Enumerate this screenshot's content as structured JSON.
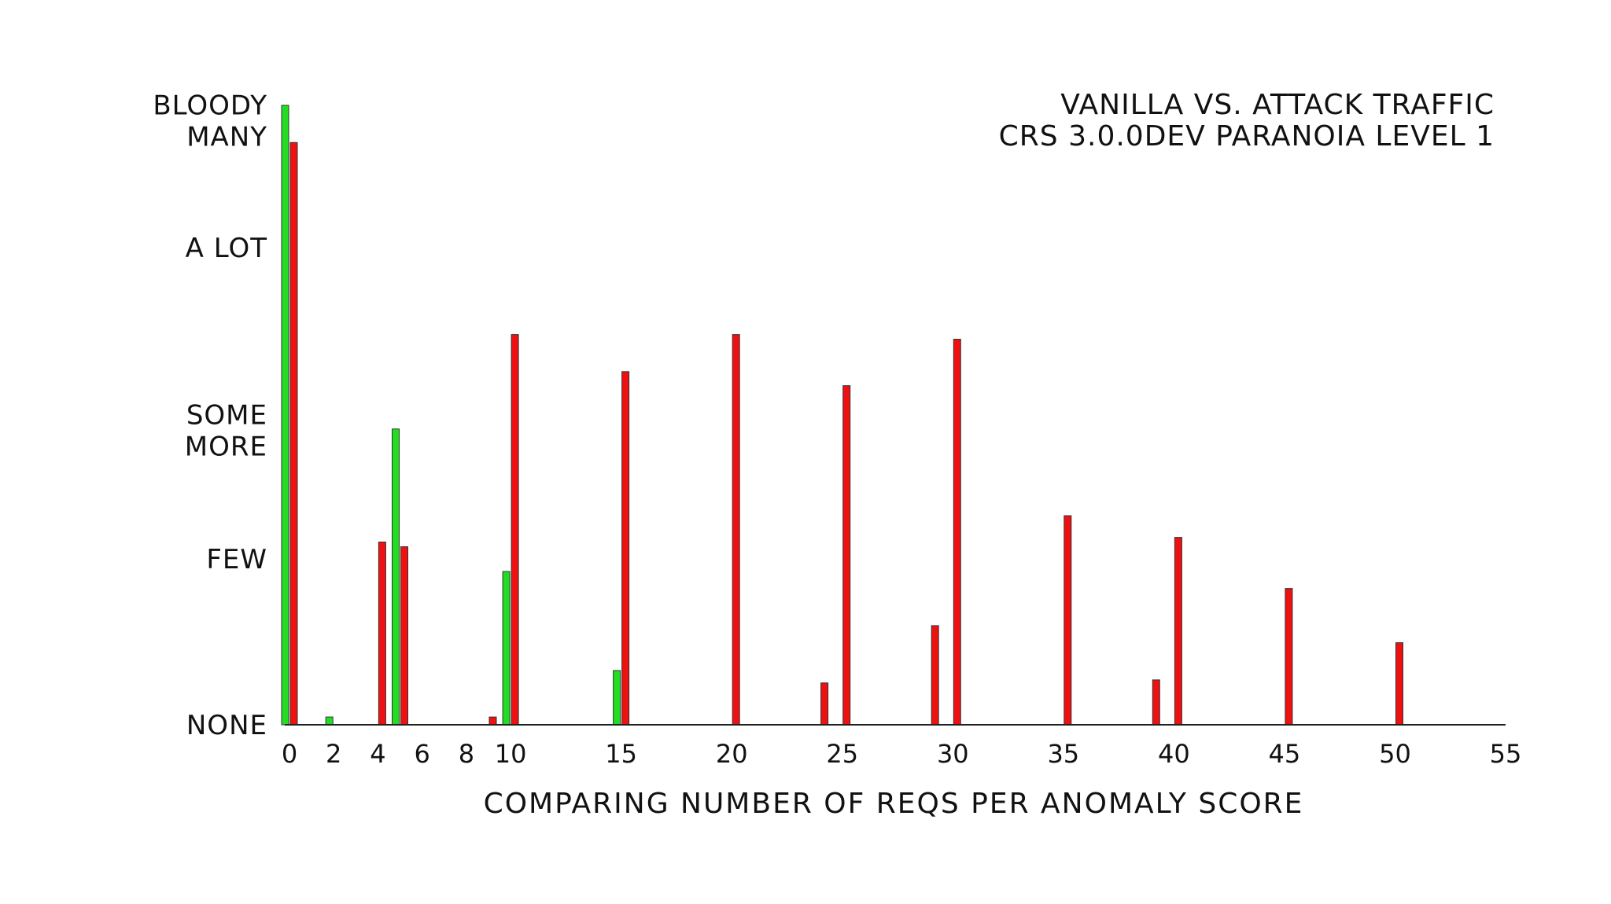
{
  "chart_data": {
    "type": "bar",
    "title_lines": [
      "VANILLA VS. ATTACK TRAFFIC",
      "CRS 3.0.0DEV PARANOIA LEVEL 1"
    ],
    "xlabel": "COMPARING NUMBER OF REQS PER ANOMALY SCORE",
    "ylabel": "",
    "xlim": [
      0,
      55
    ],
    "ylim": [
      0,
      4
    ],
    "x_ticks": [
      {
        "value": 0,
        "label": "0"
      },
      {
        "value": 2,
        "label": "2"
      },
      {
        "value": 4,
        "label": "4"
      },
      {
        "value": 6,
        "label": "6"
      },
      {
        "value": 8,
        "label": "8"
      },
      {
        "value": 10,
        "label": "10"
      },
      {
        "value": 15,
        "label": "15"
      },
      {
        "value": 20,
        "label": "20"
      },
      {
        "value": 25,
        "label": "25"
      },
      {
        "value": 30,
        "label": "30"
      },
      {
        "value": 35,
        "label": "35"
      },
      {
        "value": 40,
        "label": "40"
      },
      {
        "value": 45,
        "label": "45"
      },
      {
        "value": 50,
        "label": "50"
      },
      {
        "value": 55,
        "label": "55"
      }
    ],
    "y_ticks": [
      {
        "value": 0,
        "lines": [
          "NONE"
        ]
      },
      {
        "value": 1.07,
        "lines": [
          "FEW"
        ]
      },
      {
        "value": 1.9,
        "lines": [
          "SOME",
          "MORE"
        ]
      },
      {
        "value": 3.08,
        "lines": [
          "A LOT"
        ]
      },
      {
        "value": 3.9,
        "lines": [
          "BLOODY",
          "MANY"
        ]
      }
    ],
    "grid": false,
    "legend": "none",
    "series": [
      {
        "color": "#22dd22",
        "points": [
          {
            "x": 0,
            "y": 4.0
          },
          {
            "x": 2,
            "y": 0.05
          },
          {
            "x": 5,
            "y": 1.91
          },
          {
            "x": 10,
            "y": 0.99
          },
          {
            "x": 15,
            "y": 0.35
          }
        ]
      },
      {
        "color": "#ee1111",
        "points": [
          {
            "x": 0,
            "y": 3.76
          },
          {
            "x": 4,
            "y": 1.18
          },
          {
            "x": 5,
            "y": 1.15
          },
          {
            "x": 9,
            "y": 0.05
          },
          {
            "x": 10,
            "y": 2.52
          },
          {
            "x": 15,
            "y": 2.28
          },
          {
            "x": 20,
            "y": 2.52
          },
          {
            "x": 24,
            "y": 0.27
          },
          {
            "x": 25,
            "y": 2.19
          },
          {
            "x": 29,
            "y": 0.64
          },
          {
            "x": 30,
            "y": 2.49
          },
          {
            "x": 35,
            "y": 1.35
          },
          {
            "x": 39,
            "y": 0.29
          },
          {
            "x": 40,
            "y": 1.21
          },
          {
            "x": 45,
            "y": 0.88
          },
          {
            "x": 50,
            "y": 0.53
          }
        ]
      }
    ]
  }
}
